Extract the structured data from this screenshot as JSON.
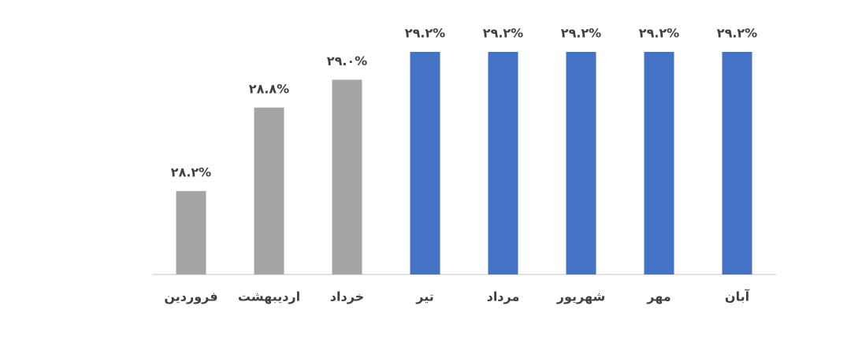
{
  "chart_data": {
    "type": "bar",
    "categories": [
      "فروردین",
      "اردیبهشت",
      "خرداد",
      "تیر",
      "مرداد",
      "شهریور",
      "مهر",
      "آبان"
    ],
    "values": [
      28.2,
      28.8,
      29.0,
      29.2,
      29.2,
      29.2,
      29.2,
      29.2
    ],
    "value_labels": [
      "۲۸.۲%",
      "۲۸.۸%",
      "۲۹.۰%",
      "۲۹.۲%",
      "۲۹.۲%",
      "۲۹.۲%",
      "۲۹.۲%",
      "۲۹.۲%"
    ],
    "colors": [
      "#a5a5a5",
      "#a5a5a5",
      "#a5a5a5",
      "#4472c4",
      "#4472c4",
      "#4472c4",
      "#4472c4",
      "#4472c4"
    ],
    "ylim": [
      27.6,
      29.2
    ]
  }
}
